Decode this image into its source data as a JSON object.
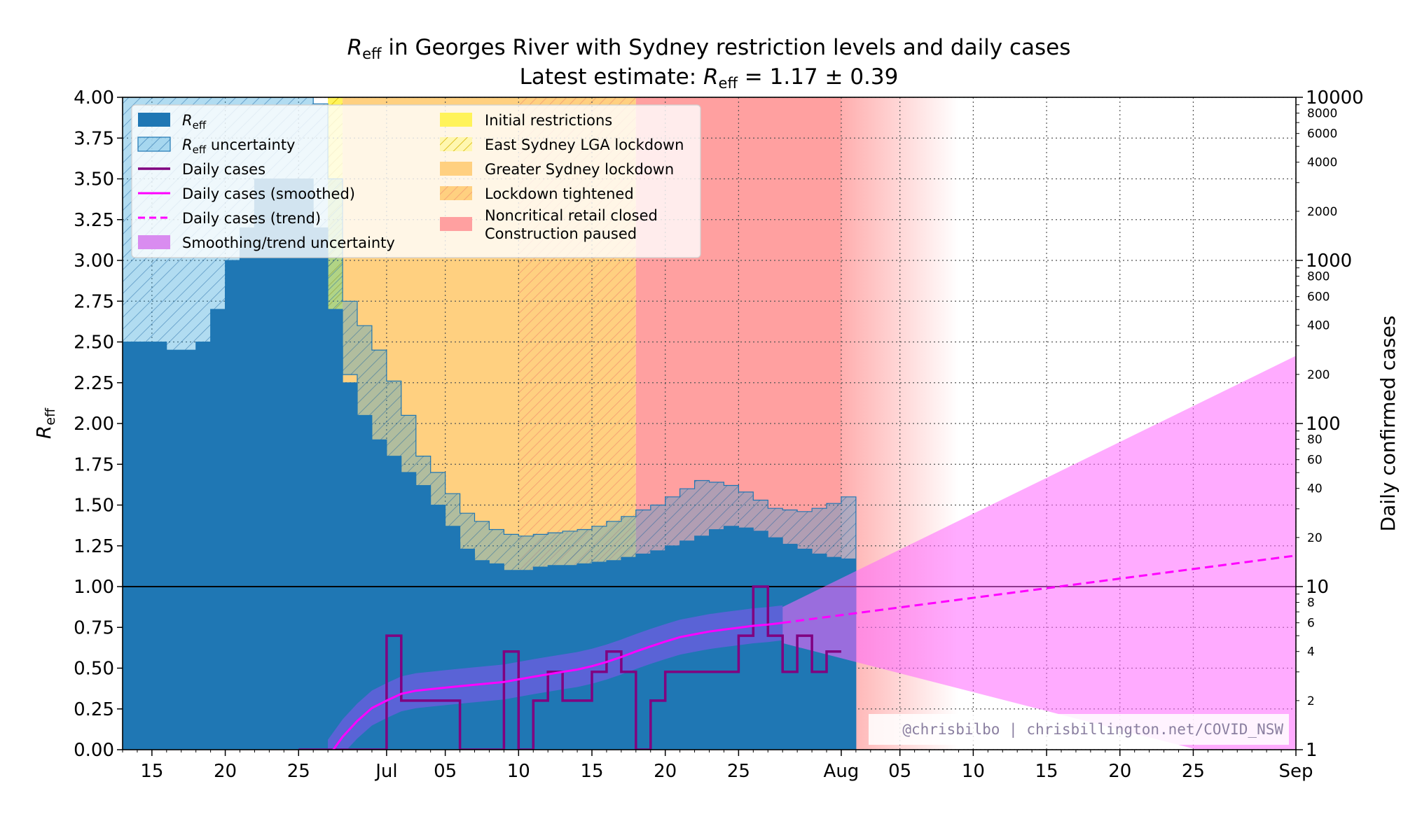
{
  "title": {
    "line1_pre": "R",
    "line1_sub": "eff",
    "line1_post": " in Georges River with Sydney restriction levels and daily cases",
    "line2_pre": "Latest estimate: ",
    "line2_R": "R",
    "line2_sub": "eff",
    "line2_post": " = 1.17 ± 0.39"
  },
  "axes": {
    "left_label_main": "R",
    "left_label_sub": "eff",
    "right_label": "Daily confirmed cases"
  },
  "watermark": "@chrisbilbo | chrisbillington.net/COVID_NSW",
  "legend": {
    "left": [
      {
        "key": "reff",
        "main": "R",
        "sub": "eff",
        "rest": ""
      },
      {
        "key": "reff_unc",
        "main": "R",
        "sub": "eff",
        "rest": " uncertainty"
      },
      {
        "key": "daily",
        "main": "Daily cases",
        "sub": "",
        "rest": ""
      },
      {
        "key": "smoothed",
        "main": "Daily cases (smoothed)",
        "sub": "",
        "rest": ""
      },
      {
        "key": "trend",
        "main": "Daily cases (trend)",
        "sub": "",
        "rest": ""
      },
      {
        "key": "smooth_unc",
        "main": "Smoothing/trend uncertainty",
        "sub": "",
        "rest": ""
      }
    ],
    "right": [
      {
        "key": "initial",
        "line1": "Initial restrictions",
        "line2": ""
      },
      {
        "key": "east",
        "line1": "East Sydney LGA lockdown",
        "line2": ""
      },
      {
        "key": "greater",
        "line1": "Greater Sydney lockdown",
        "line2": ""
      },
      {
        "key": "tightened",
        "line1": "Lockdown tightened",
        "line2": ""
      },
      {
        "key": "noncritical",
        "line1": "Noncritical retail closed",
        "line2": "Construction paused"
      }
    ]
  },
  "colors": {
    "reff": "#1f77b4",
    "reff_unc_fill": "#1f9bd6",
    "daily": "#800080",
    "smoothed": "#ff00ff",
    "trend_unc": "#ff66ff",
    "initial": "#fff35a",
    "east": "#ffd54a",
    "greater": "#ffd080",
    "tightened": "#ffa060",
    "noncritical": "#ffa0a0"
  },
  "chart_data": {
    "type": "step-area + line (dual axis)",
    "x_axis": {
      "start": "2021-06-13",
      "end": "2021-09-01",
      "tick_labels": [
        {
          "date": "2021-06-15",
          "label": "15"
        },
        {
          "date": "2021-06-20",
          "label": "20"
        },
        {
          "date": "2021-06-25",
          "label": "25"
        },
        {
          "date": "2021-07-01",
          "label": "Jul"
        },
        {
          "date": "2021-07-05",
          "label": "05"
        },
        {
          "date": "2021-07-10",
          "label": "10"
        },
        {
          "date": "2021-07-15",
          "label": "15"
        },
        {
          "date": "2021-07-20",
          "label": "20"
        },
        {
          "date": "2021-07-25",
          "label": "25"
        },
        {
          "date": "2021-08-01",
          "label": "Aug"
        },
        {
          "date": "2021-08-05",
          "label": "05"
        },
        {
          "date": "2021-08-10",
          "label": "10"
        },
        {
          "date": "2021-08-15",
          "label": "15"
        },
        {
          "date": "2021-08-20",
          "label": "20"
        },
        {
          "date": "2021-08-25",
          "label": "25"
        },
        {
          "date": "2021-09-01",
          "label": "Sep"
        }
      ]
    },
    "left_axis": {
      "label": "Reff",
      "ylim": [
        0,
        4
      ],
      "ticks": [
        "0.00",
        "0.25",
        "0.50",
        "0.75",
        "1.00",
        "1.25",
        "1.50",
        "1.75",
        "2.00",
        "2.25",
        "2.50",
        "2.75",
        "3.00",
        "3.25",
        "3.50",
        "3.75",
        "4.00"
      ]
    },
    "right_axis": {
      "label": "Daily confirmed cases",
      "scale": "log",
      "ylim": [
        1,
        10000
      ],
      "major_ticks": [
        {
          "value": 1,
          "label": "1"
        },
        {
          "value": 10,
          "label": "10"
        },
        {
          "value": 100,
          "label": "100"
        },
        {
          "value": 1000,
          "label": "1000"
        },
        {
          "value": 10000,
          "label": "10000"
        }
      ],
      "minor_tick_labels": [
        {
          "value": 2,
          "label": "2"
        },
        {
          "value": 4,
          "label": "4"
        },
        {
          "value": 6,
          "label": "6"
        },
        {
          "value": 8,
          "label": "8"
        },
        {
          "value": 20,
          "label": "20"
        },
        {
          "value": 40,
          "label": "40"
        },
        {
          "value": 60,
          "label": "60"
        },
        {
          "value": 80,
          "label": "80"
        },
        {
          "value": 200,
          "label": "200"
        },
        {
          "value": 400,
          "label": "400"
        },
        {
          "value": 600,
          "label": "600"
        },
        {
          "value": 800,
          "label": "800"
        },
        {
          "value": 2000,
          "label": "2000"
        },
        {
          "value": 4000,
          "label": "4000"
        },
        {
          "value": 6000,
          "label": "6000"
        },
        {
          "value": 8000,
          "label": "8000"
        }
      ]
    },
    "reference_line": {
      "reff": 1.0
    },
    "restriction_periods": [
      {
        "name": "Initial restrictions",
        "start": "2021-06-27",
        "end": "2021-06-28"
      },
      {
        "name": "Greater Sydney lockdown",
        "start": "2021-06-28",
        "end": "2021-07-18"
      },
      {
        "name": "Lockdown tightened",
        "start": "2021-07-10",
        "end": "2021-07-18"
      },
      {
        "name": "Noncritical retail closed / Construction paused",
        "start": "2021-07-18",
        "end": "2021-08-01",
        "fade_out_until": "2021-08-09"
      }
    ],
    "reff_series": {
      "start": "2021-06-13",
      "reff": [
        2.5,
        2.5,
        2.5,
        2.45,
        2.45,
        2.5,
        2.7,
        3.0,
        3.2,
        3.5,
        3.5,
        3.5,
        3.5,
        3.2,
        2.7,
        2.25,
        2.05,
        1.9,
        1.8,
        1.7,
        1.62,
        1.5,
        1.37,
        1.23,
        1.16,
        1.14,
        1.1,
        1.1,
        1.12,
        1.13,
        1.13,
        1.14,
        1.15,
        1.16,
        1.18,
        1.2,
        1.22,
        1.25,
        1.28,
        1.31,
        1.35,
        1.37,
        1.36,
        1.34,
        1.3,
        1.26,
        1.23,
        1.2,
        1.18,
        1.17
      ],
      "lower": [
        1.05,
        1.1,
        1.21,
        1.37,
        1.62,
        1.98,
        2.4,
        2.83,
        3.1,
        3.3,
        3.4,
        3.1,
        2.9,
        2.7,
        2.47,
        2.3,
        2.0,
        1.79,
        1.6,
        1.5,
        1.43,
        1.35,
        1.27,
        1.2,
        1.1,
        1.02,
        0.97,
        0.93,
        0.93,
        0.95,
        0.97,
        0.99,
        1.0,
        1.02,
        1.04,
        1.06,
        1.08,
        1.1,
        1.13,
        1.16,
        1.21,
        1.24,
        1.22,
        1.18,
        1.12,
        1.02,
        0.95,
        0.88,
        0.86,
        0.86
      ],
      "upper": [
        4.0,
        4.0,
        4.0,
        4.0,
        4.0,
        4.0,
        4.0,
        4.0,
        4.0,
        4.0,
        4.0,
        4.0,
        4.0,
        3.96,
        3.5,
        2.75,
        2.6,
        2.45,
        2.26,
        2.05,
        1.8,
        1.7,
        1.57,
        1.45,
        1.4,
        1.35,
        1.32,
        1.31,
        1.32,
        1.33,
        1.34,
        1.35,
        1.37,
        1.4,
        1.43,
        1.47,
        1.5,
        1.55,
        1.6,
        1.65,
        1.64,
        1.62,
        1.58,
        1.53,
        1.48,
        1.47,
        1.46,
        1.48,
        1.51,
        1.55
      ]
    },
    "daily_cases": {
      "start": "2021-06-25",
      "values": [
        1,
        1,
        1,
        1,
        1,
        1,
        5,
        2,
        2,
        2,
        2,
        1,
        1,
        1,
        4,
        1,
        2,
        3,
        2,
        2,
        3,
        4,
        3,
        1,
        2,
        3,
        3,
        3,
        3,
        3,
        5,
        10,
        5,
        3,
        5,
        3,
        4
      ]
    },
    "smoothed_cases": {
      "start": "2021-06-27",
      "values": [
        0.9,
        1.2,
        1.5,
        1.8,
        2.0,
        2.2,
        2.3,
        2.35,
        2.4,
        2.45,
        2.5,
        2.55,
        2.6,
        2.7,
        2.8,
        2.9,
        3.0,
        3.1,
        3.25,
        3.45,
        3.7,
        4.0,
        4.3,
        4.6,
        4.9,
        5.1,
        5.3,
        5.45,
        5.6,
        5.75,
        5.85,
        6.0
      ]
    },
    "trend": {
      "start": "2021-07-28",
      "end": "2021-09-01",
      "start_value": 6.0,
      "end_value": 15.5
    },
    "trend_uncertainty": {
      "start_lower": 4.5,
      "start_upper": 7.5,
      "end_lower": 0.7,
      "end_upper": 260
    }
  }
}
